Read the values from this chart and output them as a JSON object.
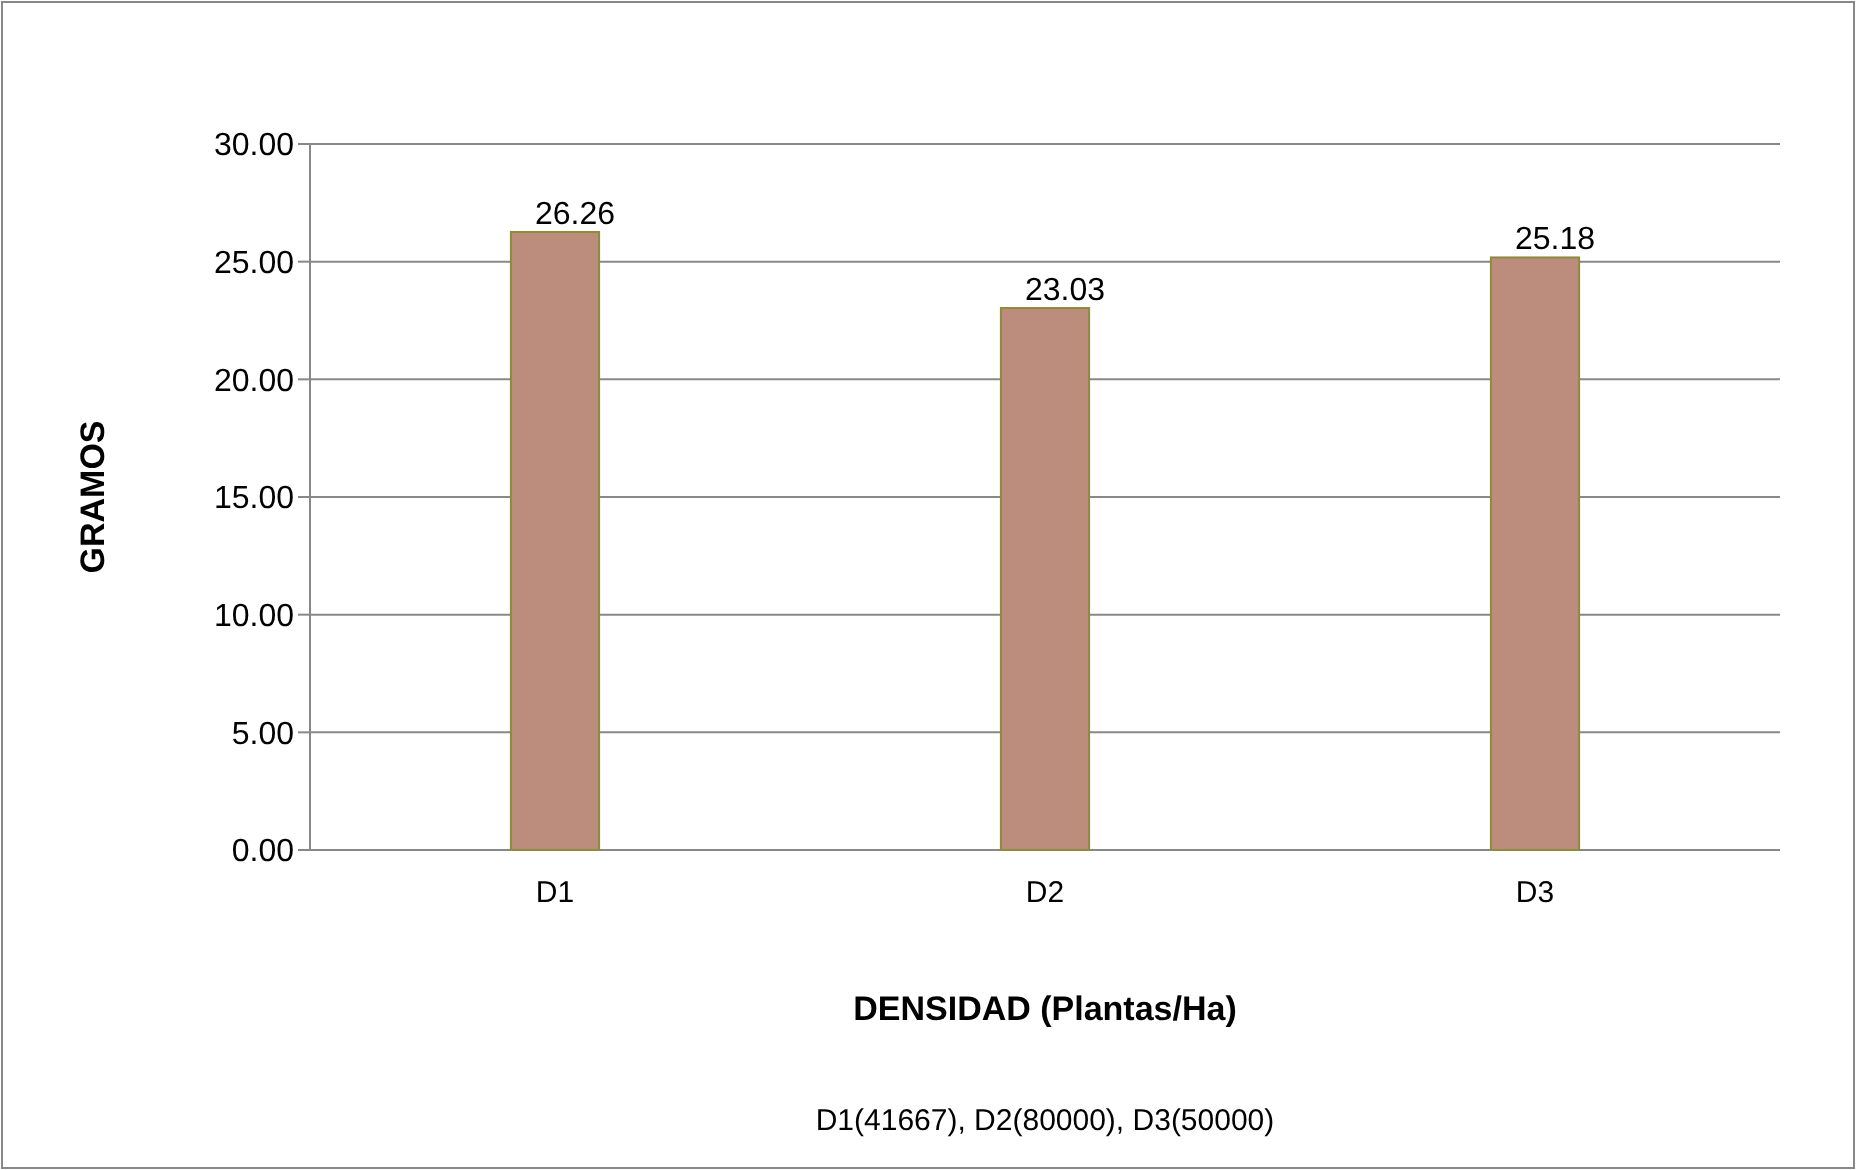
{
  "chart_data": {
    "type": "bar",
    "categories": [
      "D1",
      "D2",
      "D3"
    ],
    "values": [
      26.26,
      23.03,
      25.18
    ],
    "color": "#bc8c7c",
    "ylim": [
      0,
      30
    ],
    "yticks": [
      {
        "value": 0,
        "label": "0.00"
      },
      {
        "value": 5,
        "label": "5.00"
      },
      {
        "value": 10,
        "label": "10.00"
      },
      {
        "value": 15,
        "label": "15.00"
      },
      {
        "value": 20,
        "label": "20.00"
      },
      {
        "value": 25,
        "label": "25.00"
      },
      {
        "value": 30,
        "label": "30.00"
      }
    ],
    "grid": "y",
    "data_labels": true,
    "xlabel": "DENSIDAD (Plantas/Ha)",
    "ylabel": "GRAMOS",
    "annotations": [
      "D1(41667), D2(80000), D3(50000)"
    ]
  }
}
